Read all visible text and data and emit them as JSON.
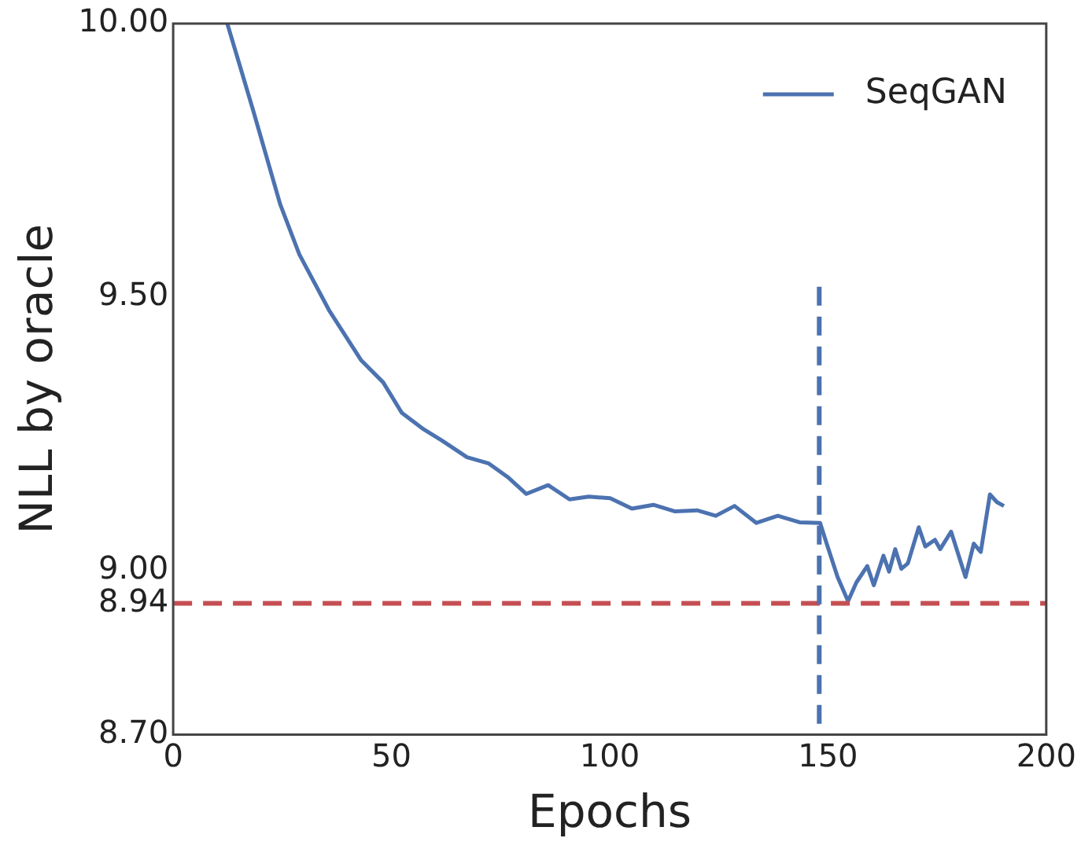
{
  "chart_data": {
    "type": "line",
    "xlabel": "Epochs",
    "ylabel": "NLL by oracle",
    "xlim": [
      0,
      200
    ],
    "xticks": [
      0,
      50,
      100,
      150,
      200
    ],
    "ylim": [
      8.7,
      10.0
    ],
    "yticks": [
      {
        "value": 8.7,
        "label": "8.70"
      },
      {
        "value": 8.94,
        "label": "8.94"
      },
      {
        "value": 9.0,
        "label": "9.00"
      },
      {
        "value": 9.5,
        "label": "9.50"
      },
      {
        "value": 10.0,
        "label": "10.00"
      }
    ],
    "grid": false,
    "legend": "top right",
    "marker": "none",
    "line_style": "solid",
    "series": [
      {
        "name": "SeqGAN",
        "color": "#4c72b0",
        "x": [
          12.4,
          18.3,
          24.5,
          28.9,
          35.7,
          43.1,
          48.1,
          52.4,
          57.4,
          61.7,
          67.3,
          72.2,
          76.6,
          80.9,
          85.9,
          90.8,
          95.2,
          100.1,
          105.1,
          110.0,
          115.0,
          120.0,
          124.3,
          128.6,
          133.6,
          138.5,
          143.5,
          148.2,
          149.7,
          152.2,
          154.6,
          156.5,
          159.0,
          160.5,
          162.7,
          164.0,
          165.4,
          166.8,
          168.3,
          170.8,
          172.3,
          174.5,
          175.7,
          178.2,
          181.5,
          183.4,
          185.0,
          187.1,
          188.7,
          190.3
        ],
        "values": [
          10.0,
          9.842,
          9.67,
          9.578,
          9.476,
          9.384,
          9.344,
          9.288,
          9.258,
          9.237,
          9.207,
          9.196,
          9.171,
          9.14,
          9.156,
          9.13,
          9.135,
          9.132,
          9.113,
          9.12,
          9.108,
          9.11,
          9.1,
          9.118,
          9.087,
          9.1,
          9.088,
          9.087,
          9.049,
          8.988,
          8.944,
          8.978,
          9.008,
          8.973,
          9.027,
          8.998,
          9.039,
          9.003,
          9.013,
          9.079,
          9.044,
          9.056,
          9.039,
          9.071,
          8.988,
          9.049,
          9.034,
          9.139,
          9.125,
          9.118
        ]
      }
    ],
    "ref_lines": [
      {
        "axis": "y",
        "value": 8.94,
        "color": "#c44e52",
        "line_style": "dashed"
      },
      {
        "axis": "x",
        "value": 148,
        "color": "#4c72b0",
        "line_style": "dashed"
      }
    ]
  }
}
